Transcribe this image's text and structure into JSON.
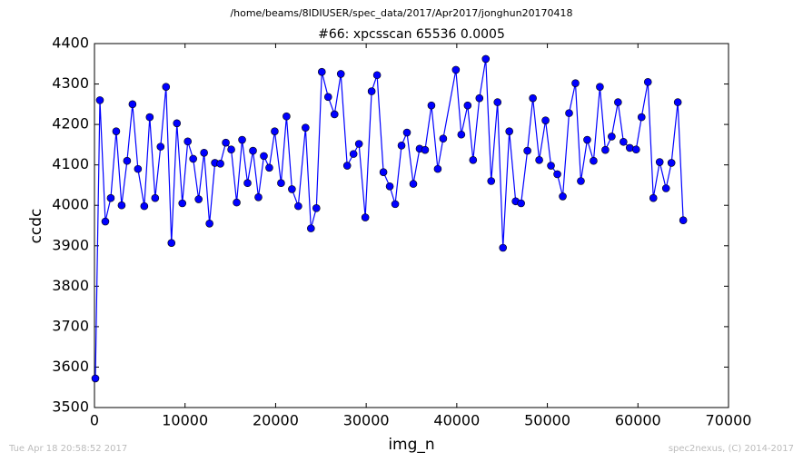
{
  "chart_data": {
    "type": "line",
    "suptitle": "/home/beams/8IDIUSER/spec_data/2017/Apr2017/jonghun20170418",
    "title": "#66: xpcsscan 65536 0.0005",
    "xlabel": "img_n",
    "ylabel": "ccdc",
    "footer_left": "Tue Apr 18 20:58:52 2017",
    "footer_right": "spec2nexus, (C) 2014-2017",
    "xlim": [
      0,
      70000
    ],
    "xticks": [
      0,
      10000,
      20000,
      30000,
      40000,
      50000,
      60000,
      70000
    ],
    "ylim": [
      3500,
      4400
    ],
    "yticks": [
      3500,
      3600,
      3700,
      3800,
      3900,
      4000,
      4100,
      4200,
      4300,
      4400
    ],
    "x": [
      100,
      600,
      1200,
      1800,
      2400,
      3000,
      3600,
      4200,
      4800,
      5500,
      6100,
      6700,
      7300,
      7900,
      8500,
      9100,
      9700,
      10300,
      10900,
      11500,
      12100,
      12700,
      13300,
      13900,
      14500,
      15100,
      15700,
      16300,
      16900,
      17500,
      18100,
      18700,
      19300,
      19900,
      20600,
      21200,
      21800,
      22500,
      23300,
      23900,
      24500,
      25100,
      25800,
      26500,
      27200,
      27900,
      28600,
      29200,
      29900,
      30600,
      31200,
      31900,
      32600,
      33200,
      33900,
      34500,
      35200,
      35900,
      36500,
      37200,
      37900,
      38500,
      39900,
      40500,
      41200,
      41800,
      42500,
      43200,
      43800,
      44500,
      45100,
      45800,
      46500,
      47100,
      47800,
      48400,
      49100,
      49800,
      50400,
      51100,
      51700,
      52400,
      53100,
      53700,
      54400,
      55100,
      55800,
      56400,
      57100,
      57800,
      58400,
      59100,
      59800,
      60400,
      61100,
      61700,
      62400,
      63100,
      63700,
      64400,
      65000
    ],
    "series": [
      {
        "color": "#0000ff",
        "values": [
          3572,
          4260,
          3960,
          4018,
          4183,
          4000,
          4110,
          4250,
          4090,
          3998,
          4218,
          4018,
          4145,
          4293,
          3907,
          4203,
          4005,
          4158,
          4115,
          4015,
          4130,
          3955,
          4105,
          4103,
          4155,
          4138,
          4007,
          4162,
          4055,
          4135,
          4020,
          4122,
          4093,
          4183,
          4055,
          4220,
          4040,
          3998,
          4192,
          3943,
          3993,
          4330,
          4268,
          4225,
          4325,
          4098,
          4127,
          4152,
          3970,
          4282,
          4322,
          4082,
          4047,
          4003,
          4148,
          4180,
          4053,
          4140,
          4137,
          4247,
          4090,
          4165,
          4335,
          4175,
          4247,
          4112,
          4265,
          4362,
          4060,
          4255,
          3895,
          4183,
          4010,
          4005,
          4135,
          4265,
          4112,
          4210,
          4098,
          4077,
          4022,
          4228,
          4302,
          4060,
          4162,
          4110,
          4293,
          4137,
          4170,
          4255,
          4157,
          4142,
          4138,
          4218,
          4305,
          4018,
          4107,
          4042,
          4105,
          4255,
          3963
        ]
      }
    ]
  }
}
